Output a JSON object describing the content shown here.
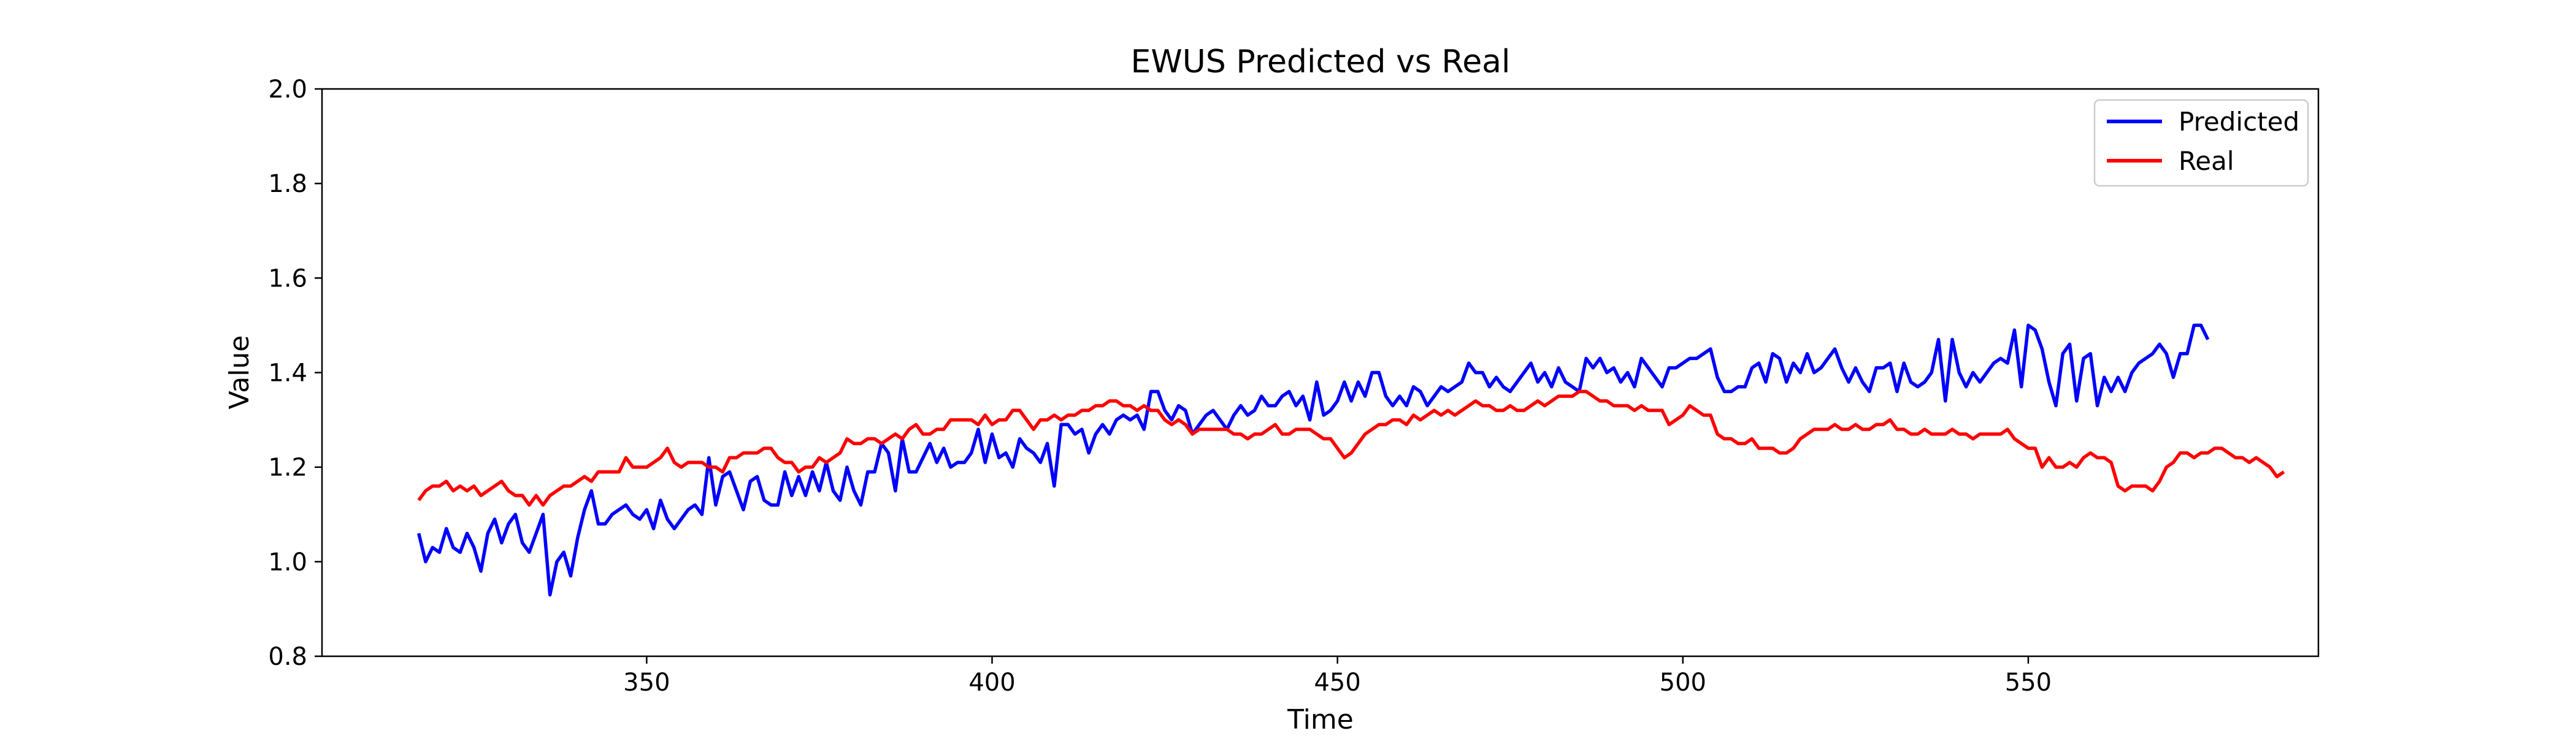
{
  "chart_data": {
    "type": "line",
    "title": "EWUS Predicted vs Real",
    "xlabel": "Time",
    "ylabel": "Value",
    "xlim": [
      303,
      592
    ],
    "ylim": [
      0.8,
      2.0
    ],
    "xticks": [
      350,
      400,
      450,
      500,
      550
    ],
    "yticks": [
      0.8,
      1.0,
      1.2,
      1.4,
      1.6,
      1.8,
      2.0
    ],
    "xtick_labels": [
      "350",
      "400",
      "450",
      "500",
      "550"
    ],
    "ytick_labels": [
      "0.8",
      "1.0",
      "1.2",
      "1.4",
      "1.6",
      "1.8",
      "2.0"
    ],
    "grid": false,
    "legend_position": "top-right",
    "x_start": 317,
    "series": [
      {
        "name": "Predicted",
        "color": "#0000ff",
        "values": [
          1.06,
          1.0,
          1.03,
          1.02,
          1.07,
          1.03,
          1.02,
          1.06,
          1.03,
          0.98,
          1.06,
          1.09,
          1.04,
          1.08,
          1.1,
          1.04,
          1.02,
          1.06,
          1.1,
          0.93,
          1.0,
          1.02,
          0.97,
          1.05,
          1.11,
          1.15,
          1.08,
          1.08,
          1.1,
          1.11,
          1.12,
          1.1,
          1.09,
          1.11,
          1.07,
          1.13,
          1.09,
          1.07,
          1.09,
          1.11,
          1.12,
          1.1,
          1.22,
          1.12,
          1.18,
          1.19,
          1.15,
          1.11,
          1.17,
          1.18,
          1.13,
          1.12,
          1.12,
          1.19,
          1.14,
          1.18,
          1.14,
          1.19,
          1.15,
          1.21,
          1.15,
          1.13,
          1.2,
          1.15,
          1.12,
          1.19,
          1.19,
          1.25,
          1.23,
          1.15,
          1.26,
          1.19,
          1.19,
          1.22,
          1.25,
          1.21,
          1.24,
          1.2,
          1.21,
          1.21,
          1.23,
          1.28,
          1.21,
          1.27,
          1.22,
          1.23,
          1.2,
          1.26,
          1.24,
          1.23,
          1.21,
          1.25,
          1.16,
          1.29,
          1.29,
          1.27,
          1.28,
          1.23,
          1.27,
          1.29,
          1.27,
          1.3,
          1.31,
          1.3,
          1.31,
          1.28,
          1.36,
          1.36,
          1.32,
          1.3,
          1.33,
          1.32,
          1.27,
          1.29,
          1.31,
          1.32,
          1.3,
          1.28,
          1.31,
          1.33,
          1.31,
          1.32,
          1.35,
          1.33,
          1.33,
          1.35,
          1.36,
          1.33,
          1.35,
          1.3,
          1.38,
          1.31,
          1.32,
          1.34,
          1.38,
          1.34,
          1.38,
          1.35,
          1.4,
          1.4,
          1.35,
          1.33,
          1.35,
          1.33,
          1.37,
          1.36,
          1.33,
          1.35,
          1.37,
          1.36,
          1.37,
          1.38,
          1.42,
          1.4,
          1.4,
          1.37,
          1.39,
          1.37,
          1.36,
          1.38,
          1.4,
          1.42,
          1.38,
          1.4,
          1.37,
          1.41,
          1.38,
          1.37,
          1.36,
          1.43,
          1.41,
          1.43,
          1.4,
          1.41,
          1.38,
          1.4,
          1.37,
          1.43,
          1.41,
          1.39,
          1.37,
          1.41,
          1.41,
          1.42,
          1.43,
          1.43,
          1.44,
          1.45,
          1.39,
          1.36,
          1.36,
          1.37,
          1.37,
          1.41,
          1.42,
          1.38,
          1.44,
          1.43,
          1.38,
          1.42,
          1.4,
          1.44,
          1.4,
          1.41,
          1.43,
          1.45,
          1.41,
          1.38,
          1.41,
          1.38,
          1.36,
          1.41,
          1.41,
          1.42,
          1.36,
          1.42,
          1.38,
          1.37,
          1.38,
          1.4,
          1.47,
          1.34,
          1.47,
          1.4,
          1.37,
          1.4,
          1.38,
          1.4,
          1.42,
          1.43,
          1.42,
          1.49,
          1.37,
          1.5,
          1.49,
          1.45,
          1.38,
          1.33,
          1.44,
          1.46,
          1.34,
          1.43,
          1.44,
          1.33,
          1.39,
          1.36,
          1.39,
          1.36,
          1.4,
          1.42,
          1.43,
          1.44,
          1.46,
          1.44,
          1.39,
          1.44,
          1.44,
          1.5,
          1.5,
          1.47
        ]
      },
      {
        "name": "Real",
        "color": "#ff0000",
        "values": [
          1.13,
          1.15,
          1.16,
          1.16,
          1.17,
          1.15,
          1.16,
          1.15,
          1.16,
          1.14,
          1.15,
          1.16,
          1.17,
          1.15,
          1.14,
          1.14,
          1.12,
          1.14,
          1.12,
          1.14,
          1.15,
          1.16,
          1.16,
          1.17,
          1.18,
          1.17,
          1.19,
          1.19,
          1.19,
          1.19,
          1.22,
          1.2,
          1.2,
          1.2,
          1.21,
          1.22,
          1.24,
          1.21,
          1.2,
          1.21,
          1.21,
          1.21,
          1.2,
          1.2,
          1.19,
          1.22,
          1.22,
          1.23,
          1.23,
          1.23,
          1.24,
          1.24,
          1.22,
          1.21,
          1.21,
          1.19,
          1.2,
          1.2,
          1.22,
          1.21,
          1.22,
          1.23,
          1.26,
          1.25,
          1.25,
          1.26,
          1.26,
          1.25,
          1.26,
          1.27,
          1.26,
          1.28,
          1.29,
          1.27,
          1.27,
          1.28,
          1.28,
          1.3,
          1.3,
          1.3,
          1.3,
          1.29,
          1.31,
          1.29,
          1.3,
          1.3,
          1.32,
          1.32,
          1.3,
          1.28,
          1.3,
          1.3,
          1.31,
          1.3,
          1.31,
          1.31,
          1.32,
          1.32,
          1.33,
          1.33,
          1.34,
          1.34,
          1.33,
          1.33,
          1.32,
          1.33,
          1.32,
          1.32,
          1.3,
          1.29,
          1.3,
          1.29,
          1.27,
          1.28,
          1.28,
          1.28,
          1.28,
          1.28,
          1.27,
          1.27,
          1.26,
          1.27,
          1.27,
          1.28,
          1.29,
          1.27,
          1.27,
          1.28,
          1.28,
          1.28,
          1.27,
          1.26,
          1.26,
          1.24,
          1.22,
          1.23,
          1.25,
          1.27,
          1.28,
          1.29,
          1.29,
          1.3,
          1.3,
          1.29,
          1.31,
          1.3,
          1.31,
          1.32,
          1.31,
          1.32,
          1.31,
          1.32,
          1.33,
          1.34,
          1.33,
          1.33,
          1.32,
          1.32,
          1.33,
          1.32,
          1.32,
          1.33,
          1.34,
          1.33,
          1.34,
          1.35,
          1.35,
          1.35,
          1.36,
          1.36,
          1.35,
          1.34,
          1.34,
          1.33,
          1.33,
          1.33,
          1.32,
          1.33,
          1.32,
          1.32,
          1.32,
          1.29,
          1.3,
          1.31,
          1.33,
          1.32,
          1.31,
          1.31,
          1.27,
          1.26,
          1.26,
          1.25,
          1.25,
          1.26,
          1.24,
          1.24,
          1.24,
          1.23,
          1.23,
          1.24,
          1.26,
          1.27,
          1.28,
          1.28,
          1.28,
          1.29,
          1.28,
          1.28,
          1.29,
          1.28,
          1.28,
          1.29,
          1.29,
          1.3,
          1.28,
          1.28,
          1.27,
          1.27,
          1.28,
          1.27,
          1.27,
          1.27,
          1.28,
          1.27,
          1.27,
          1.26,
          1.27,
          1.27,
          1.27,
          1.27,
          1.28,
          1.26,
          1.25,
          1.24,
          1.24,
          1.2,
          1.22,
          1.2,
          1.2,
          1.21,
          1.2,
          1.22,
          1.23,
          1.22,
          1.22,
          1.21,
          1.16,
          1.15,
          1.16,
          1.16,
          1.16,
          1.15,
          1.17,
          1.2,
          1.21,
          1.23,
          1.23,
          1.22,
          1.23,
          1.23,
          1.24,
          1.24,
          1.23,
          1.22,
          1.22,
          1.21,
          1.22,
          1.21,
          1.2,
          1.18,
          1.19
        ]
      }
    ]
  }
}
